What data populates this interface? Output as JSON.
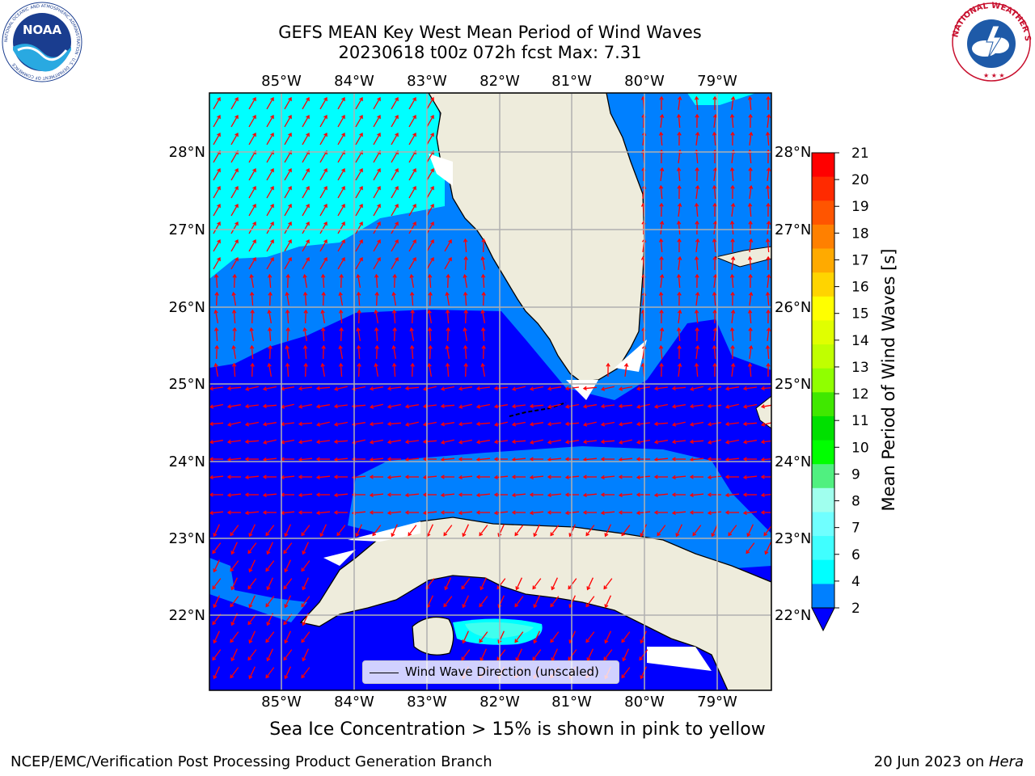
{
  "title": {
    "line1": "GEFS MEAN Key West Mean Period of Wind Waves",
    "line2": "20230618 t00z 072h fcst   Max: 7.31"
  },
  "map": {
    "lon_labels": [
      "85°W",
      "84°W",
      "83°W",
      "82°W",
      "81°W",
      "80°W",
      "79°W"
    ],
    "lat_labels": [
      "28°N",
      "27°N",
      "26°N",
      "25°N",
      "24°N",
      "23°N",
      "22°N"
    ],
    "legend_label": "Wind Wave Direction (unscaled)",
    "land_color": "#eeecdc",
    "arrow_color": "#ff0000"
  },
  "colorbar": {
    "label": "Mean Period of Wind Waves [s]",
    "ticks": [
      "21",
      "20",
      "19",
      "18",
      "17",
      "16",
      "15",
      "14",
      "13",
      "12",
      "11",
      "10",
      "9",
      "8",
      "7",
      "6",
      "4",
      "2"
    ],
    "colors": [
      "#ff0000",
      "#ff2a00",
      "#ff5500",
      "#ff8000",
      "#ffaa00",
      "#ffd400",
      "#ffff00",
      "#e0ff00",
      "#c0ff00",
      "#90ff00",
      "#40e800",
      "#00e000",
      "#00ff00",
      "#50f080",
      "#a0ffee",
      "#70ffff",
      "#40ffff",
      "#00ffff",
      "#0080ff"
    ]
  },
  "footer": {
    "ice_note": "Sea Ice Concentration > 15% is shown in pink to yellow",
    "branch": "NCEP/EMC/Verification Post Processing Product Generation Branch",
    "date": "20 Jun 2023 on ",
    "machine": "Hera"
  },
  "logos": {
    "noaa_text": "NOAA",
    "noaa_ring": "NATIONAL OCEANIC AND ATMOSPHERIC ADMINISTRATION · U.S. DEPARTMENT OF COMMERCE",
    "nws_ring": "NATIONAL WEATHER SERVICE"
  }
}
